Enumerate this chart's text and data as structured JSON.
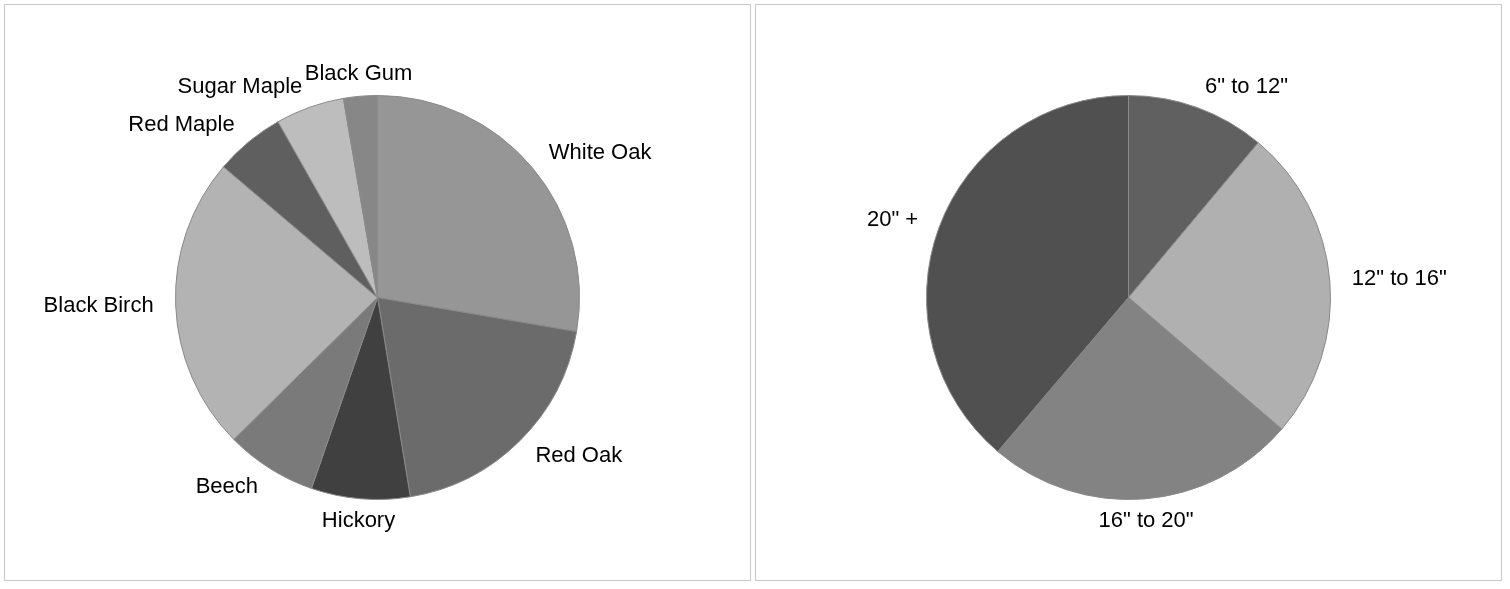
{
  "chart_data": [
    {
      "type": "pie",
      "categories": [
        "White Oak",
        "Red Oak",
        "Hickory",
        "Beech",
        "Black Birch",
        "Red Maple",
        "Sugar Maple",
        "Black Gum"
      ],
      "values": [
        27.7,
        19.7,
        7.9,
        7.3,
        23.6,
        5.6,
        5.5,
        2.7
      ],
      "colors": [
        "#969696",
        "#6b6b6b",
        "#404040",
        "#7a7a7a",
        "#b3b3b3",
        "#5f5f5f",
        "#bdbdbd",
        "#878787"
      ],
      "legend": false
    },
    {
      "type": "pie",
      "categories": [
        "6\" to 12\"",
        "12\" to 16\"",
        "16\" to 20\"",
        "20\" +"
      ],
      "values": [
        11.1,
        25.2,
        24.9,
        38.8
      ],
      "colors": [
        "#606060",
        "#b0b0b0",
        "#838383",
        "#505050"
      ],
      "legend": false
    }
  ]
}
